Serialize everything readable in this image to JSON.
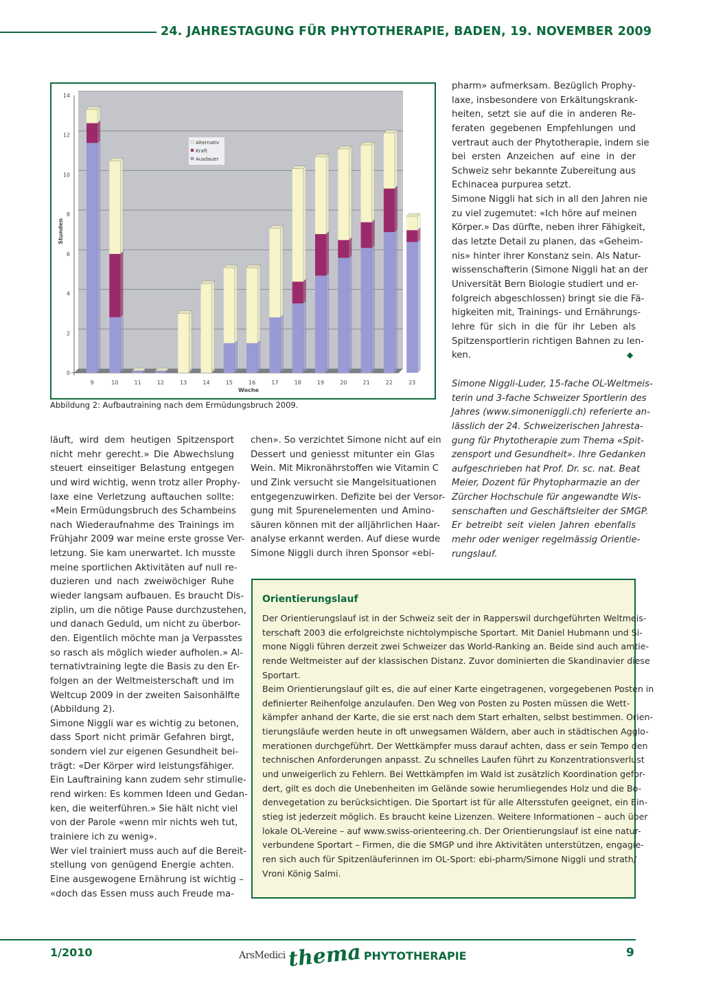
{
  "header": {
    "title": "24. JAHRESTAGUNG FÜR PHYTOTHERAPIE, BADEN, 19. NOVEMBER 2009"
  },
  "colors": {
    "brand_green": "#0b6a3c",
    "box_bg": "#f5f6dc",
    "ausdauer": "#9a9ad6",
    "kraft": "#9b2a6a",
    "alternativ": "#f6f4c8"
  },
  "figure": {
    "caption": "Abbildung 2: Aufbautraining nach dem Ermüdungsbruch 2009."
  },
  "chart_data": {
    "type": "bar",
    "stacked": true,
    "three_d": true,
    "title": "",
    "xlabel": "Woche",
    "ylabel": "Stunden",
    "ylim": [
      0,
      14
    ],
    "yticks": [
      "0",
      "2",
      "4",
      "6",
      "8",
      "10",
      "12",
      "14"
    ],
    "grid": true,
    "legend_position": "top-center",
    "categories": [
      "9",
      "10",
      "11",
      "12",
      "13",
      "14",
      "15",
      "16",
      "17",
      "18",
      "19",
      "20",
      "21",
      "22",
      "23"
    ],
    "series": [
      {
        "name": "Ausdauer",
        "color": "#9a9ad6",
        "values": [
          11.6,
          2.8,
          0.1,
          0.1,
          0,
          0,
          1.5,
          1.5,
          2.8,
          3.5,
          4.9,
          5.8,
          6.3,
          7.1,
          6.6
        ]
      },
      {
        "name": "Kraft",
        "color": "#9b2a6a",
        "values": [
          1.0,
          3.2,
          0,
          0,
          0,
          0,
          0,
          0,
          0,
          1.1,
          2.1,
          0.9,
          1.3,
          2.2,
          0.6
        ]
      },
      {
        "name": "Alternativ",
        "color": "#f6f4c8",
        "values": [
          0.7,
          4.7,
          0,
          0,
          3.0,
          4.5,
          3.8,
          3.8,
          4.5,
          5.7,
          3.9,
          4.6,
          3.9,
          2.8,
          0.7
        ]
      }
    ],
    "legend_order": [
      "Alternativ",
      "Kraft",
      "Ausdauer"
    ]
  },
  "right_top": {
    "paragraphs": [
      [
        "pharm» aufmerksam. Bezüglich Prophy-",
        "laxe, insbesondere von Erkältungskrank-",
        "heiten, setzt sie auf die in anderen Re-",
        "feraten gegebenen Empfehlungen und",
        "vertraut auch der Phytotherapie, indem sie",
        "bei ersten Anzeichen auf eine in der",
        "Schweiz sehr bekannte Zubereitung aus",
        "Echinacea purpurea setzt."
      ],
      [
        "Simone Niggli hat sich in all den Jahren nie",
        "zu viel zugemutet: «Ich höre auf meinen",
        "Körper.» Das dürfte, neben ihrer Fähigkeit,",
        "das letzte Detail zu planen, das «Geheim-",
        "nis» hinter ihrer Konstanz sein. Als Natur-",
        "wissenschafterin (Simone Niggli hat an der",
        "Universität Bern Biologie studiert und er-",
        "folgreich abgeschlossen) bringt sie die Fä-",
        "higkeiten mit, Trainings- und Ernährungs-",
        "lehre für sich in die für ihr Leben als",
        "Spitzensportlerin richtigen Bahnen zu len-",
        "ken."
      ]
    ]
  },
  "author_note": {
    "paragraphs": [
      [
        "Simone Niggli-Luder, 15-fache OL-Weltmeis-",
        "terin und 3-fache Schweizer Sportlerin des",
        "Jahres (www.simoneniggli.ch) referierte an-",
        "lässlich der 24. Schweizerischen Jahresta-",
        "gung für Phytotherapie zum Thema «Spit-",
        "zensport und Gesundheit». Ihre Gedanken",
        "aufgeschrieben hat Prof. Dr. sc. nat. Beat",
        "Meier, Dozent für Phytopharmazie an der",
        "Zürcher Hochschule für angewandte Wis-",
        "senschaften und Geschäftsleiter der SMGP.",
        "Er betreibt seit vielen Jahren ebenfalls",
        "mehr oder weniger regelmässig Orientie-",
        "rungslauf."
      ]
    ]
  },
  "left_col": {
    "paragraphs": [
      [
        "läuft, wird dem heutigen Spitzensport",
        "nicht mehr gerecht.» Die Abwechslung",
        "steuert einseitiger Belastung entgegen",
        "und wird wichtig, wenn trotz aller Prophy-",
        "laxe eine Verletzung auftauchen sollte:",
        "«Mein Ermüdungsbruch des Schambeins",
        "nach Wiederaufnahme des Trainings im",
        "Frühjahr 2009 war meine erste grosse Ver-",
        "letzung. Sie kam unerwartet. Ich musste",
        "meine sportlichen Aktivitäten auf null re-",
        "duzieren und nach zweiwöchiger Ruhe",
        "wieder langsam aufbauen. Es braucht Dis-",
        "ziplin, um die nötige Pause durchzustehen,",
        "und danach Geduld, um nicht zu überbor-",
        "den. Eigentlich möchte man ja Verpasstes",
        "so rasch als möglich wieder aufholen.» Al-",
        "ternativtraining legte die Basis zu den Er-",
        "folgen an der Weltmeisterschaft und im",
        "Weltcup 2009 in der zweiten Saisonhälfte",
        "(Abbildung 2)."
      ],
      [
        "Simone Niggli war es wichtig zu betonen,",
        "dass Sport nicht primär Gefahren birgt,",
        "sondern viel zur eigenen Gesundheit bei-",
        "trägt: «Der Körper wird leistungsfähiger.",
        "Ein Lauftraining kann zudem sehr stimulie-",
        "rend wirken: Es kommen Ideen und Gedan-",
        "ken, die weiterführen.» Sie hält nicht viel",
        "von der Parole «wenn mir nichts weh tut,",
        "trainiere ich zu wenig»."
      ],
      [
        "Wer viel trainiert muss auch auf die Bereit-",
        "stellung von genügend Energie achten.",
        "Eine ausgewogene Ernährung ist wichtig –",
        "«doch das Essen muss auch Freude ma-"
      ]
    ]
  },
  "mid_col": {
    "paragraphs": [
      [
        "chen». So verzichtet Simone nicht auf ein",
        "Dessert und geniesst mitunter ein Glas",
        "Wein. Mit Mikronährstoffen wie Vitamin C",
        "und Zink versucht sie Mangelsituationen",
        "entgegenzuwirken. Defizite bei der Versor-",
        "gung mit Spurenelementen und Amino-",
        "säuren können mit der alljährlichen Haar-",
        "analyse erkannt werden. Auf diese wurde",
        "Simone Niggli durch ihren Sponsor «ebi-"
      ]
    ]
  },
  "box": {
    "title": "Orientierungslauf",
    "paragraphs": [
      [
        "Der Orientierungslauf ist in der Schweiz seit der in Rapperswil durchgeführten Weltmeis-",
        "terschaft 2003 die erfolgreichste nichtolympische Sportart. Mit Daniel Hubmann und Si-",
        "mone Niggli führen derzeit zwei Schweizer das World-Ranking an. Beide sind auch amtie-",
        "rende Weltmeister auf der klassischen Distanz. Zuvor dominierten die Skandinavier diese",
        "Sportart."
      ],
      [
        "Beim Orientierungslauf gilt es, die auf einer Karte eingetragenen, vorgegebenen Posten in",
        "definierter Reihenfolge anzulaufen. Den Weg von Posten zu Posten müssen die Wett-",
        "kämpfer anhand der Karte, die sie erst nach dem Start erhalten, selbst bestimmen. Orien-",
        "tierungsläufe werden heute in oft unwegsamen Wäldern, aber auch in städtischen Agglo-",
        "merationen durchgeführt. Der Wettkämpfer muss darauf achten, dass er sein Tempo den",
        "technischen Anforderungen anpasst. Zu schnelles Laufen führt zu Konzentrationsverlust",
        "und unweigerlich zu Fehlern. Bei Wettkämpfen im Wald ist zusätzlich Koordination gefor-",
        "dert, gilt es doch die Unebenheiten im Gelände sowie herumliegendes Holz und die Bo-",
        "denvegetation zu berücksichtigen. Die Sportart ist für alle Altersstufen geeignet, ein Ein-",
        "stieg ist jederzeit möglich. Es braucht keine Lizenzen. Weitere Informationen – auch über",
        "lokale OL-Vereine – auf www.swiss-orienteering.ch. Der Orientierungslauf ist eine natur-",
        "verbundene Sportart – Firmen, die die SMGP und ihre Aktivitäten unterstützen, engagie-",
        "ren sich auch für Spitzenläuferinnen im OL-Sport: ebi-pharm/Simone Niggli und strath/",
        "Vroni König Salmi."
      ]
    ]
  },
  "end_mark_icon": "diamond-icon",
  "footer": {
    "issue": "1/2010",
    "logo_ars": "ArsMedici",
    "logo_thema": "thema",
    "logo_section": "PHYTOTHERAPIE",
    "page_number": "9"
  }
}
